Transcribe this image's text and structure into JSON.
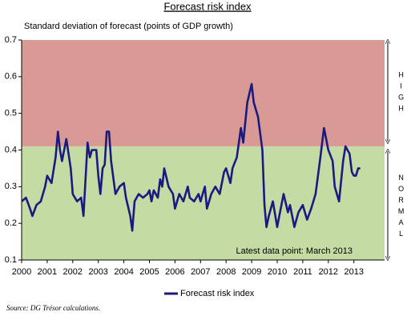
{
  "chart_data": {
    "type": "line",
    "title": "Forecast risk index",
    "subtitle": "Standard deviation of forecast (points of GDP growth)",
    "annotation": "Latest data point: March 2013",
    "source": "Source: DG Trésor calculations.",
    "xlim": [
      2000,
      2014.2
    ],
    "xticks": [
      2000,
      2001,
      2002,
      2003,
      2004,
      2005,
      2006,
      2007,
      2008,
      2009,
      2010,
      2011,
      2012,
      2013
    ],
    "ylim": [
      0.1,
      0.7
    ],
    "yticks": [
      0.1,
      0.2,
      0.3,
      0.4,
      0.5,
      0.6,
      0.7
    ],
    "bands": [
      {
        "label": "NORMAL",
        "from": 0.1,
        "to": 0.41,
        "color": "#c4dca4"
      },
      {
        "label": "HIGH",
        "from": 0.41,
        "to": 0.7,
        "color": "#d99a95"
      }
    ],
    "legend": "bottom",
    "series": [
      {
        "name": "Forecast risk index",
        "color": "#1a1a80",
        "x": [
          2000.0,
          2000.17,
          2000.33,
          2000.42,
          2000.58,
          2000.75,
          2000.92,
          2001.0,
          2001.17,
          2001.33,
          2001.42,
          2001.5,
          2001.58,
          2001.75,
          2001.92,
          2002.0,
          2002.17,
          2002.33,
          2002.42,
          2002.58,
          2002.67,
          2002.75,
          2002.92,
          2003.0,
          2003.08,
          2003.17,
          2003.25,
          2003.33,
          2003.42,
          2003.5,
          2003.67,
          2003.83,
          2004.0,
          2004.08,
          2004.25,
          2004.33,
          2004.42,
          2004.58,
          2004.75,
          2004.92,
          2005.0,
          2005.08,
          2005.17,
          2005.33,
          2005.42,
          2005.5,
          2005.58,
          2005.75,
          2005.92,
          2006.0,
          2006.17,
          2006.33,
          2006.5,
          2006.58,
          2006.75,
          2006.92,
          2007.0,
          2007.17,
          2007.25,
          2007.42,
          2007.58,
          2007.75,
          2007.92,
          2008.0,
          2008.17,
          2008.25,
          2008.42,
          2008.58,
          2008.67,
          2008.83,
          2009.0,
          2009.08,
          2009.25,
          2009.42,
          2009.5,
          2009.58,
          2009.67,
          2009.83,
          2010.0,
          2010.08,
          2010.25,
          2010.42,
          2010.5,
          2010.67,
          2010.83,
          2011.0,
          2011.17,
          2011.33,
          2011.5,
          2011.67,
          2011.83,
          2012.0,
          2012.17,
          2012.25,
          2012.42,
          2012.58,
          2012.67,
          2012.83,
          2012.92,
          2013.0,
          2013.08,
          2013.17,
          2013.25
        ],
        "values": [
          0.26,
          0.27,
          0.24,
          0.22,
          0.25,
          0.26,
          0.3,
          0.33,
          0.31,
          0.38,
          0.45,
          0.4,
          0.37,
          0.43,
          0.35,
          0.28,
          0.26,
          0.27,
          0.22,
          0.42,
          0.38,
          0.4,
          0.4,
          0.33,
          0.28,
          0.35,
          0.36,
          0.45,
          0.45,
          0.37,
          0.28,
          0.3,
          0.31,
          0.27,
          0.22,
          0.18,
          0.26,
          0.28,
          0.27,
          0.28,
          0.29,
          0.26,
          0.29,
          0.27,
          0.32,
          0.3,
          0.35,
          0.3,
          0.28,
          0.24,
          0.28,
          0.26,
          0.3,
          0.27,
          0.26,
          0.28,
          0.26,
          0.3,
          0.24,
          0.28,
          0.3,
          0.28,
          0.34,
          0.35,
          0.31,
          0.35,
          0.38,
          0.46,
          0.42,
          0.53,
          0.58,
          0.53,
          0.49,
          0.4,
          0.25,
          0.19,
          0.22,
          0.26,
          0.19,
          0.22,
          0.28,
          0.23,
          0.25,
          0.19,
          0.23,
          0.25,
          0.21,
          0.24,
          0.28,
          0.37,
          0.46,
          0.4,
          0.37,
          0.3,
          0.26,
          0.37,
          0.41,
          0.39,
          0.34,
          0.33,
          0.33,
          0.35,
          0.35
        ]
      }
    ]
  }
}
